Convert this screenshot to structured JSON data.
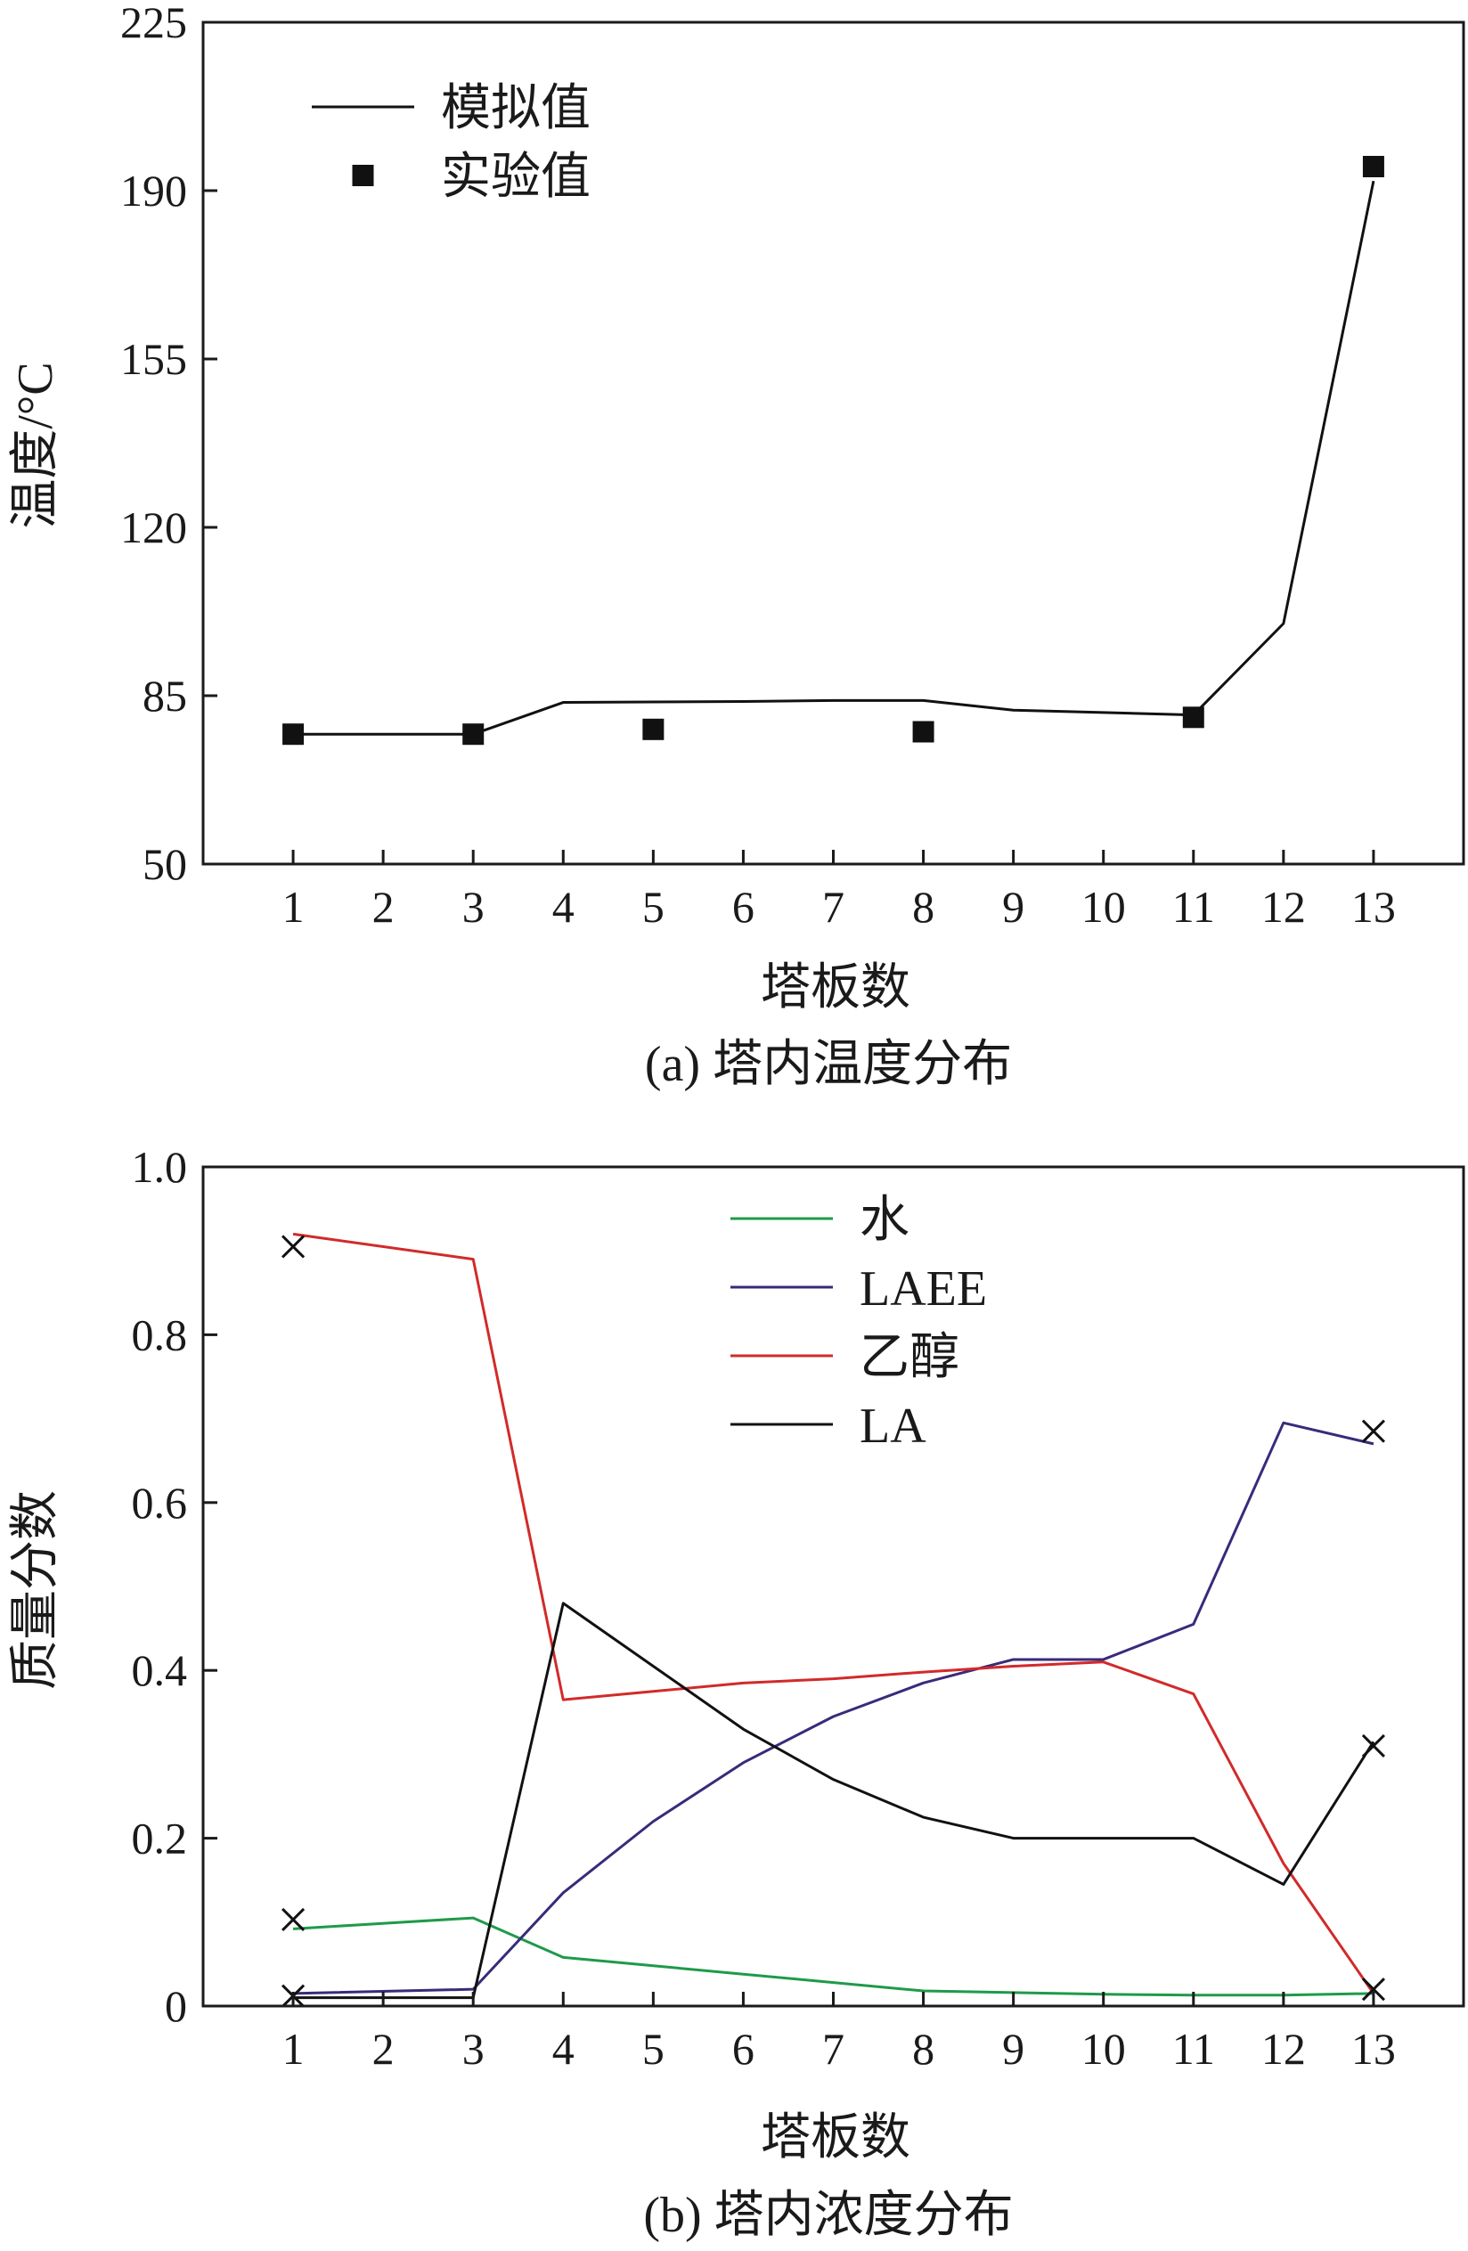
{
  "chart_data": [
    {
      "type": "line",
      "caption": "(a) 塔内温度分布",
      "xlabel": "塔板数",
      "ylabel": "温度/°C",
      "xlim": [
        0,
        14
      ],
      "ylim": [
        50,
        225
      ],
      "xticks": [
        1,
        2,
        3,
        4,
        5,
        6,
        7,
        8,
        9,
        10,
        11,
        12,
        13
      ],
      "yticks": [
        50,
        85,
        120,
        155,
        190,
        225
      ],
      "grid": false,
      "legend_position": "top-left",
      "series": [
        {
          "name": "模拟值",
          "kind": "line",
          "color": "#111111",
          "x": [
            1,
            3,
            4,
            5,
            6,
            7,
            8,
            9,
            10,
            11,
            12,
            13
          ],
          "y": [
            77,
            77,
            83.6,
            83.7,
            83.8,
            84,
            84,
            82,
            81.5,
            81,
            100,
            192
          ]
        },
        {
          "name": "实验值",
          "kind": "marker-square",
          "color": "#111111",
          "x": [
            1,
            3,
            5,
            8,
            11,
            13
          ],
          "y": [
            77,
            77,
            78,
            77.5,
            80.5,
            195
          ]
        }
      ]
    },
    {
      "type": "line",
      "caption": "(b) 塔内浓度分布",
      "xlabel": "塔板数",
      "ylabel": "质量分数",
      "xlim": [
        0,
        14
      ],
      "ylim": [
        0,
        1.0
      ],
      "xticks": [
        1,
        2,
        3,
        4,
        5,
        6,
        7,
        8,
        9,
        10,
        11,
        12,
        13
      ],
      "yticks": [
        0,
        0.2,
        0.4,
        0.6,
        0.8,
        1.0
      ],
      "grid": false,
      "legend_position": "top-center",
      "series": [
        {
          "name": "水",
          "kind": "line",
          "color": "#1f9a4a",
          "x": [
            1,
            3,
            4,
            5,
            6,
            7,
            8,
            9,
            10,
            11,
            12,
            13
          ],
          "y": [
            0.092,
            0.105,
            0.058,
            0.048,
            0.038,
            0.028,
            0.018,
            0.016,
            0.014,
            0.013,
            0.013,
            0.015
          ]
        },
        {
          "name": "LAEE",
          "kind": "line",
          "color": "#3a2a7a",
          "x": [
            1,
            3,
            4,
            5,
            6,
            7,
            8,
            9,
            10,
            11,
            12,
            13
          ],
          "y": [
            0.015,
            0.02,
            0.135,
            0.22,
            0.29,
            0.345,
            0.385,
            0.413,
            0.413,
            0.455,
            0.695,
            0.67
          ]
        },
        {
          "name": "乙醇",
          "kind": "line",
          "color": "#d22a2a",
          "x": [
            1,
            3,
            4,
            5,
            6,
            7,
            8,
            9,
            10,
            11,
            12,
            13
          ],
          "y": [
            0.92,
            0.89,
            0.365,
            0.375,
            0.385,
            0.39,
            0.398,
            0.405,
            0.41,
            0.372,
            0.17,
            0.015
          ]
        },
        {
          "name": "LA",
          "kind": "line",
          "color": "#111111",
          "x": [
            1,
            3,
            4,
            5,
            6,
            7,
            8,
            9,
            10,
            11,
            12,
            13
          ],
          "y": [
            0.01,
            0.01,
            0.48,
            0.405,
            0.33,
            0.27,
            0.225,
            0.2,
            0.2,
            0.2,
            0.145,
            0.315
          ]
        }
      ],
      "markers": {
        "kind": "cross",
        "color": "#111111",
        "x": [
          1,
          1,
          1,
          13,
          13,
          13
        ],
        "y": [
          0.905,
          0.103,
          0.012,
          0.685,
          0.31,
          0.02
        ]
      }
    }
  ]
}
